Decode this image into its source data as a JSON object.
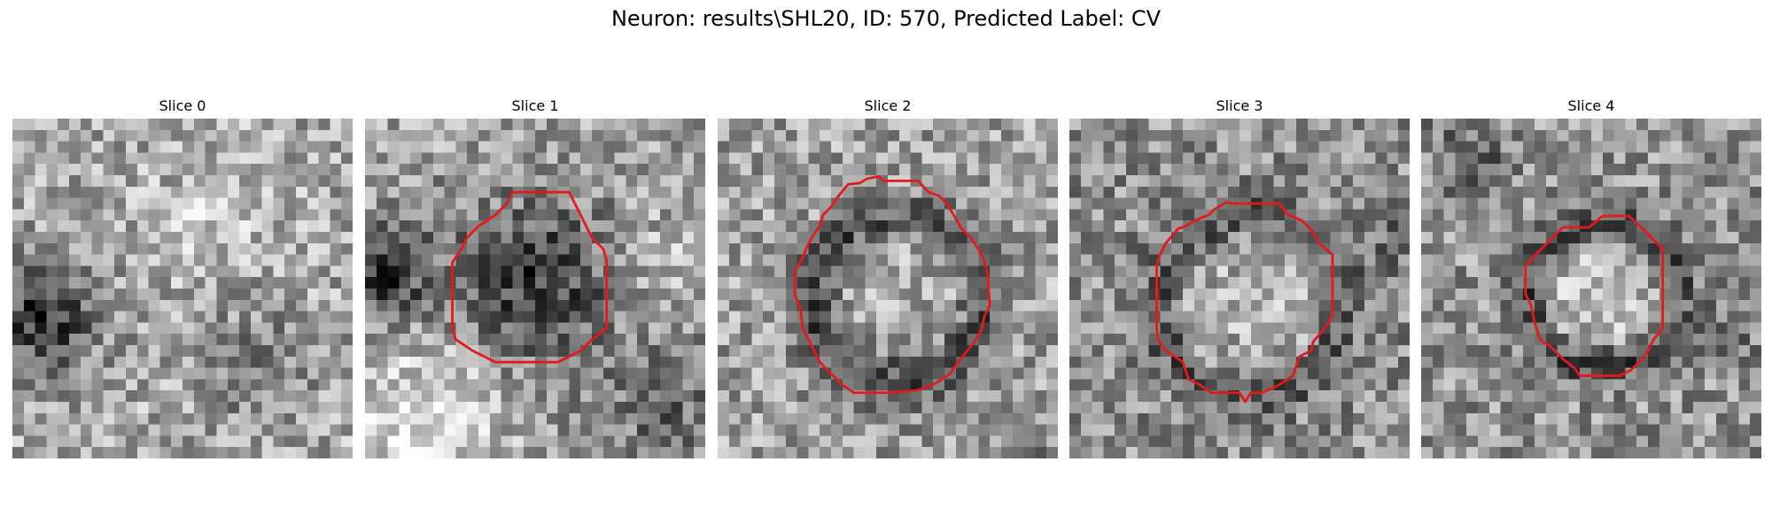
{
  "figure": {
    "title": "Neuron: results\\SHL20, ID: 570, Predicted Label: CV"
  },
  "colormap": "gray",
  "contour_color": "#e31a1c",
  "panels": [
    {
      "title": "Slice 0",
      "has_contour": false
    },
    {
      "title": "Slice 1",
      "has_contour": true
    },
    {
      "title": "Slice 2",
      "has_contour": true
    },
    {
      "title": "Slice 3",
      "has_contour": true
    },
    {
      "title": "Slice 4",
      "has_contour": true
    }
  ]
}
